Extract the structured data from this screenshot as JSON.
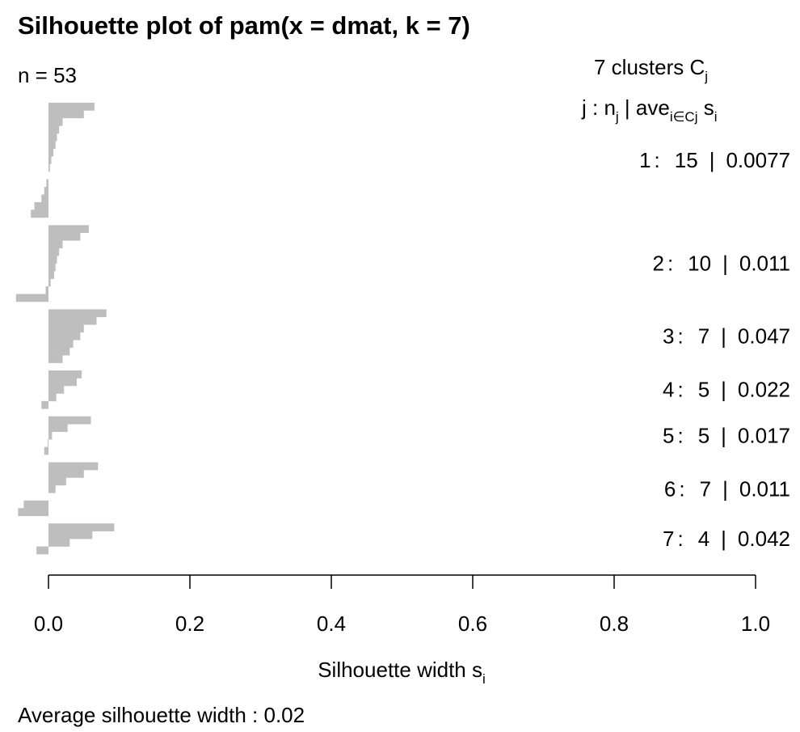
{
  "chart_data": {
    "type": "silhouette",
    "title": "Silhouette plot of pam(x = dmat, k = 7)",
    "n_label": "n = 53",
    "legend_title": [
      "7  clusters  C",
      "j"
    ],
    "legend_header": [
      "j :  n",
      "j",
      " | ave",
      "i∈Cj",
      "  s",
      "i"
    ],
    "label_separators": [
      ":",
      "|"
    ],
    "xlabel": [
      "Silhouette width s",
      "i"
    ],
    "footer": "Average silhouette width :  0.02",
    "color": "#bebebe",
    "xlim": [
      0,
      1
    ],
    "xticks": [
      {
        "value": 0,
        "label": "0.0"
      },
      0.2,
      0.4,
      0.6,
      0.8,
      {
        "value": 1,
        "label": "1.0"
      }
    ],
    "series": [
      {
        "name": "1",
        "size": 15,
        "ave": 0.0077,
        "values": [
          0.065,
          0.05,
          0.02,
          0.015,
          0.012,
          0.01,
          0.007,
          0.004,
          0.002,
          0,
          -0.003,
          -0.006,
          -0.01,
          -0.02,
          -0.025
        ]
      },
      {
        "name": "2",
        "size": 10,
        "ave": 0.011,
        "values": [
          0.057,
          0.045,
          0.02,
          0.015,
          0.012,
          0.01,
          0.008,
          0.003,
          -0.004,
          -0.046
        ]
      },
      {
        "name": "3",
        "size": 7,
        "ave": 0.047,
        "values": [
          0.082,
          0.068,
          0.05,
          0.045,
          0.035,
          0.03,
          0.02
        ]
      },
      {
        "name": "4",
        "size": 5,
        "ave": 0.022,
        "values": [
          0.047,
          0.04,
          0.022,
          0.011,
          -0.01
        ]
      },
      {
        "name": "5",
        "size": 5,
        "ave": 0.017,
        "values": [
          0.06,
          0.027,
          0.005,
          -0.001,
          -0.006
        ]
      },
      {
        "name": "6",
        "size": 7,
        "ave": 0.011,
        "values": [
          0.07,
          0.05,
          0.025,
          0.01,
          0,
          -0.035,
          -0.043
        ]
      },
      {
        "name": "7",
        "size": 4,
        "ave": 0.042,
        "values": [
          0.093,
          0.062,
          0.03,
          -0.017
        ]
      }
    ]
  }
}
